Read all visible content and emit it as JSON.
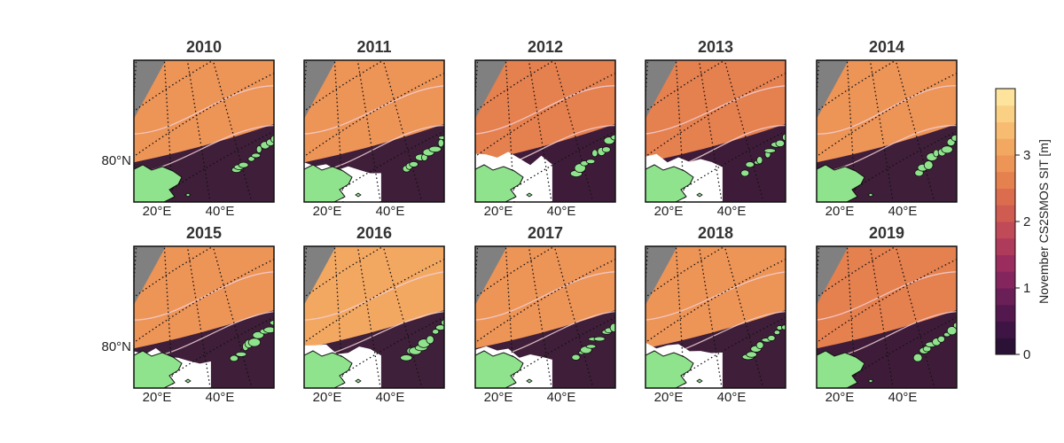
{
  "figure": {
    "panels": [
      {
        "year": "2010",
        "lat_label": "80°N",
        "lon_labels": [
          "20°E",
          "40°E"
        ]
      },
      {
        "year": "2011",
        "lon_labels": [
          "20°E",
          "40°E"
        ]
      },
      {
        "year": "2012",
        "lon_labels": [
          "20°E",
          "40°E"
        ]
      },
      {
        "year": "2013",
        "lon_labels": [
          "20°E",
          "40°E"
        ]
      },
      {
        "year": "2014",
        "lon_labels": [
          "20°E",
          "40°E"
        ]
      },
      {
        "year": "2015",
        "lat_label": "80°N",
        "lon_labels": [
          "20°E",
          "40°E"
        ]
      },
      {
        "year": "2016",
        "lon_labels": [
          "20°E",
          "40°E"
        ]
      },
      {
        "year": "2017",
        "lon_labels": [
          "20°E",
          "40°E"
        ]
      },
      {
        "year": "2018",
        "lon_labels": [
          "20°E",
          "40°E"
        ]
      },
      {
        "year": "2019",
        "lon_labels": [
          "20°E",
          "40°E"
        ]
      }
    ],
    "colorbar": {
      "label": "November CS2SMOS SIT [m]",
      "ticks": [
        "0",
        "1",
        "2",
        "3"
      ],
      "range": [
        0,
        4
      ],
      "colors": [
        "#2b1136",
        "#3d1444",
        "#53194f",
        "#6b1f57",
        "#84265d",
        "#9a2d5e",
        "#ae3a5c",
        "#c04a58",
        "#cf5b51",
        "#db6d4e",
        "#e5804f",
        "#ed9457",
        "#f3a862",
        "#f7bc72",
        "#fad085",
        "#fde39c"
      ]
    },
    "map_colors": {
      "land": "#90e38d",
      "missing": "#808080",
      "no_ice": "#ffffff"
    }
  },
  "chart_data": {
    "type": "heatmap",
    "title": "",
    "panel_titles": [
      "2010",
      "2011",
      "2012",
      "2013",
      "2014",
      "2015",
      "2016",
      "2017",
      "2018",
      "2019"
    ],
    "colorbar_label": "November CS2SMOS SIT [m]",
    "colorbar_range": [
      0,
      4
    ],
    "colorbar_ticks": [
      0,
      1,
      2,
      3
    ],
    "latitude_labels": [
      "80°N"
    ],
    "longitude_labels": [
      "20°E",
      "40°E"
    ],
    "grid": true
  }
}
